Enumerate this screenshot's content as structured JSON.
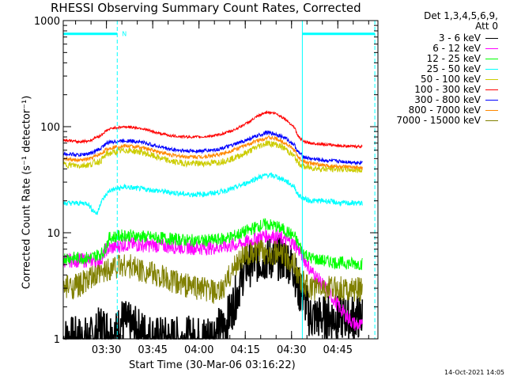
{
  "chart_data": {
    "type": "line",
    "title": "RHESSI Observing Summary Count Rates, Corrected",
    "xlabel": "Start Time (30-Mar-06 03:16:22)",
    "ylabel": "Corrected Count Rate (s⁻¹ detector⁻¹)",
    "yscale": "log",
    "ylim": [
      1,
      1000
    ],
    "xlim_minutes": [
      0,
      102
    ],
    "x_ticks": [
      {
        "t": 14,
        "label": "03:30"
      },
      {
        "t": 29,
        "label": "03:45"
      },
      {
        "t": 44,
        "label": "04:00"
      },
      {
        "t": 59,
        "label": "04:15"
      },
      {
        "t": 74,
        "label": "04:30"
      },
      {
        "t": 89,
        "label": "04:45"
      }
    ],
    "y_ticks": [
      {
        "v": 1,
        "label": "1"
      },
      {
        "v": 10,
        "label": "10"
      },
      {
        "v": 100,
        "label": "100"
      },
      {
        "v": 1000,
        "label": "1000"
      }
    ],
    "legend_header": [
      "Det 1,3,4,5,6,9,",
      "Att 0"
    ],
    "series": [
      {
        "name": "3 - 6 keV",
        "color": "#000000",
        "t": [
          0,
          10,
          12,
          17,
          19,
          22,
          30,
          38,
          45,
          50,
          52,
          54,
          56,
          58,
          59,
          63,
          67,
          70,
          73,
          75,
          76,
          78,
          80
        ],
        "values": [
          1.0,
          1.0,
          1.3,
          1.1,
          1.5,
          1.3,
          1.0,
          1.0,
          1.0,
          1.2,
          1.3,
          1.7,
          2.5,
          4.0,
          4.8,
          5.5,
          5.8,
          5.8,
          5.5,
          4.5,
          3.0,
          2.5,
          1.6
        ]
      },
      {
        "name": "6 - 12 keV",
        "color": "#ff00ff",
        "t": [
          0,
          12,
          14,
          20,
          30,
          40,
          45,
          50,
          55,
          60,
          63,
          66,
          69,
          72,
          75,
          77,
          80,
          85,
          90,
          94,
          97
        ],
        "values": [
          5.5,
          5.5,
          7.0,
          7.8,
          7.6,
          7.3,
          7.2,
          7.3,
          7.6,
          8.2,
          9.0,
          9.5,
          9.2,
          8.5,
          7.8,
          6.5,
          4.5,
          3.0,
          1.9,
          1.4,
          1.3
        ]
      },
      {
        "name": "12 - 25 keV",
        "color": "#00ff00",
        "t": [
          0,
          9,
          10,
          13,
          15,
          20,
          30,
          40,
          45,
          50,
          55,
          60,
          63,
          66,
          69,
          72,
          75,
          76,
          78,
          80,
          85,
          90,
          95,
          97
        ],
        "values": [
          5.8,
          5.8,
          6.0,
          6.5,
          9.0,
          9.5,
          9.0,
          8.5,
          8.4,
          8.6,
          9.2,
          10.5,
          11.5,
          12.0,
          11.5,
          10.5,
          9.2,
          8.0,
          6.5,
          5.8,
          5.4,
          5.2,
          5.1,
          5.1
        ]
      },
      {
        "name": "25 - 50 keV",
        "color": "#00ffff",
        "t": [
          0,
          8,
          9,
          11,
          12,
          14,
          15,
          20,
          30,
          40,
          45,
          50,
          55,
          60,
          63,
          66,
          69,
          72,
          75,
          76,
          78,
          80,
          85,
          90,
          95,
          97
        ],
        "values": [
          19,
          19,
          17,
          15,
          19,
          23,
          25,
          27,
          25,
          23,
          23,
          24,
          26,
          30,
          33,
          35,
          34,
          31,
          27,
          23,
          21,
          20,
          20,
          19,
          19,
          19
        ]
      },
      {
        "name": "50 - 100 keV",
        "color": "#cccc00",
        "t": [
          0,
          5,
          9,
          10,
          12,
          14,
          16,
          20,
          25,
          30,
          35,
          40,
          45,
          50,
          55,
          60,
          63,
          66,
          69,
          72,
          75,
          76,
          78,
          80,
          85,
          90,
          95,
          97
        ],
        "values": [
          44,
          43,
          44,
          46,
          47,
          55,
          57,
          60,
          58,
          52,
          47,
          45,
          45,
          46,
          50,
          58,
          65,
          70,
          68,
          62,
          52,
          46,
          42,
          41,
          40,
          40,
          39,
          39
        ]
      },
      {
        "name": "100 - 300 keV",
        "color": "#ff0000",
        "t": [
          0,
          5,
          9,
          10,
          12,
          14,
          16,
          20,
          25,
          30,
          35,
          40,
          45,
          50,
          55,
          60,
          63,
          66,
          69,
          72,
          75,
          76,
          78,
          80,
          85,
          90,
          95,
          97
        ],
        "values": [
          75,
          72,
          74,
          78,
          82,
          92,
          97,
          100,
          97,
          88,
          82,
          80,
          80,
          83,
          92,
          110,
          125,
          138,
          133,
          118,
          98,
          82,
          72,
          70,
          68,
          66,
          65,
          65
        ]
      },
      {
        "name": "300 - 800 keV",
        "color": "#0000ff",
        "t": [
          0,
          5,
          9,
          10,
          12,
          14,
          16,
          20,
          25,
          30,
          35,
          40,
          45,
          50,
          55,
          60,
          63,
          66,
          69,
          72,
          75,
          76,
          78,
          80,
          85,
          90,
          95,
          97
        ],
        "values": [
          56,
          54,
          56,
          58,
          62,
          70,
          72,
          74,
          72,
          66,
          61,
          59,
          59,
          61,
          67,
          76,
          82,
          88,
          85,
          78,
          67,
          58,
          52,
          50,
          48,
          47,
          46,
          46
        ]
      },
      {
        "name": "800 - 7000 keV",
        "color": "#ff8800",
        "t": [
          0,
          5,
          9,
          10,
          12,
          14,
          16,
          20,
          25,
          30,
          35,
          40,
          45,
          50,
          55,
          60,
          63,
          66,
          69,
          72,
          75,
          76,
          78,
          80,
          85,
          90,
          95,
          97
        ],
        "values": [
          50,
          48,
          50,
          52,
          55,
          61,
          64,
          66,
          64,
          59,
          54,
          52,
          52,
          54,
          60,
          68,
          74,
          79,
          77,
          70,
          60,
          52,
          47,
          45,
          43,
          42,
          41,
          41
        ]
      },
      {
        "name": "7000 - 15000 keV",
        "color": "#808000",
        "t": [
          0,
          5,
          10,
          12,
          14,
          16,
          20,
          25,
          30,
          35,
          40,
          45,
          48,
          50,
          52,
          54,
          56,
          58,
          60,
          63,
          66,
          69,
          72,
          75,
          76,
          78,
          80,
          85,
          90,
          95,
          97
        ],
        "values": [
          3.0,
          3.2,
          3.8,
          4.0,
          4.5,
          4.8,
          5.0,
          4.5,
          4.0,
          3.5,
          3.2,
          3.0,
          2.8,
          2.6,
          3.0,
          4.0,
          5.0,
          6.0,
          6.2,
          6.5,
          6.6,
          6.4,
          6.0,
          5.2,
          4.0,
          3.3,
          3.0,
          3.0,
          3.0,
          2.9,
          2.9
        ]
      }
    ],
    "flag_markers": {
      "color": "#00ffff",
      "label": "N",
      "bars": [
        {
          "t0": 0,
          "t1": 17.5,
          "value": 750
        },
        {
          "t0": 77.5,
          "t1": 101,
          "value": 750
        }
      ],
      "solid_lines_t": [
        0,
        77.5
      ],
      "dashed_lines_t": [
        17.5,
        101
      ]
    },
    "footer_date": "14-Oct-2021 14:05"
  }
}
